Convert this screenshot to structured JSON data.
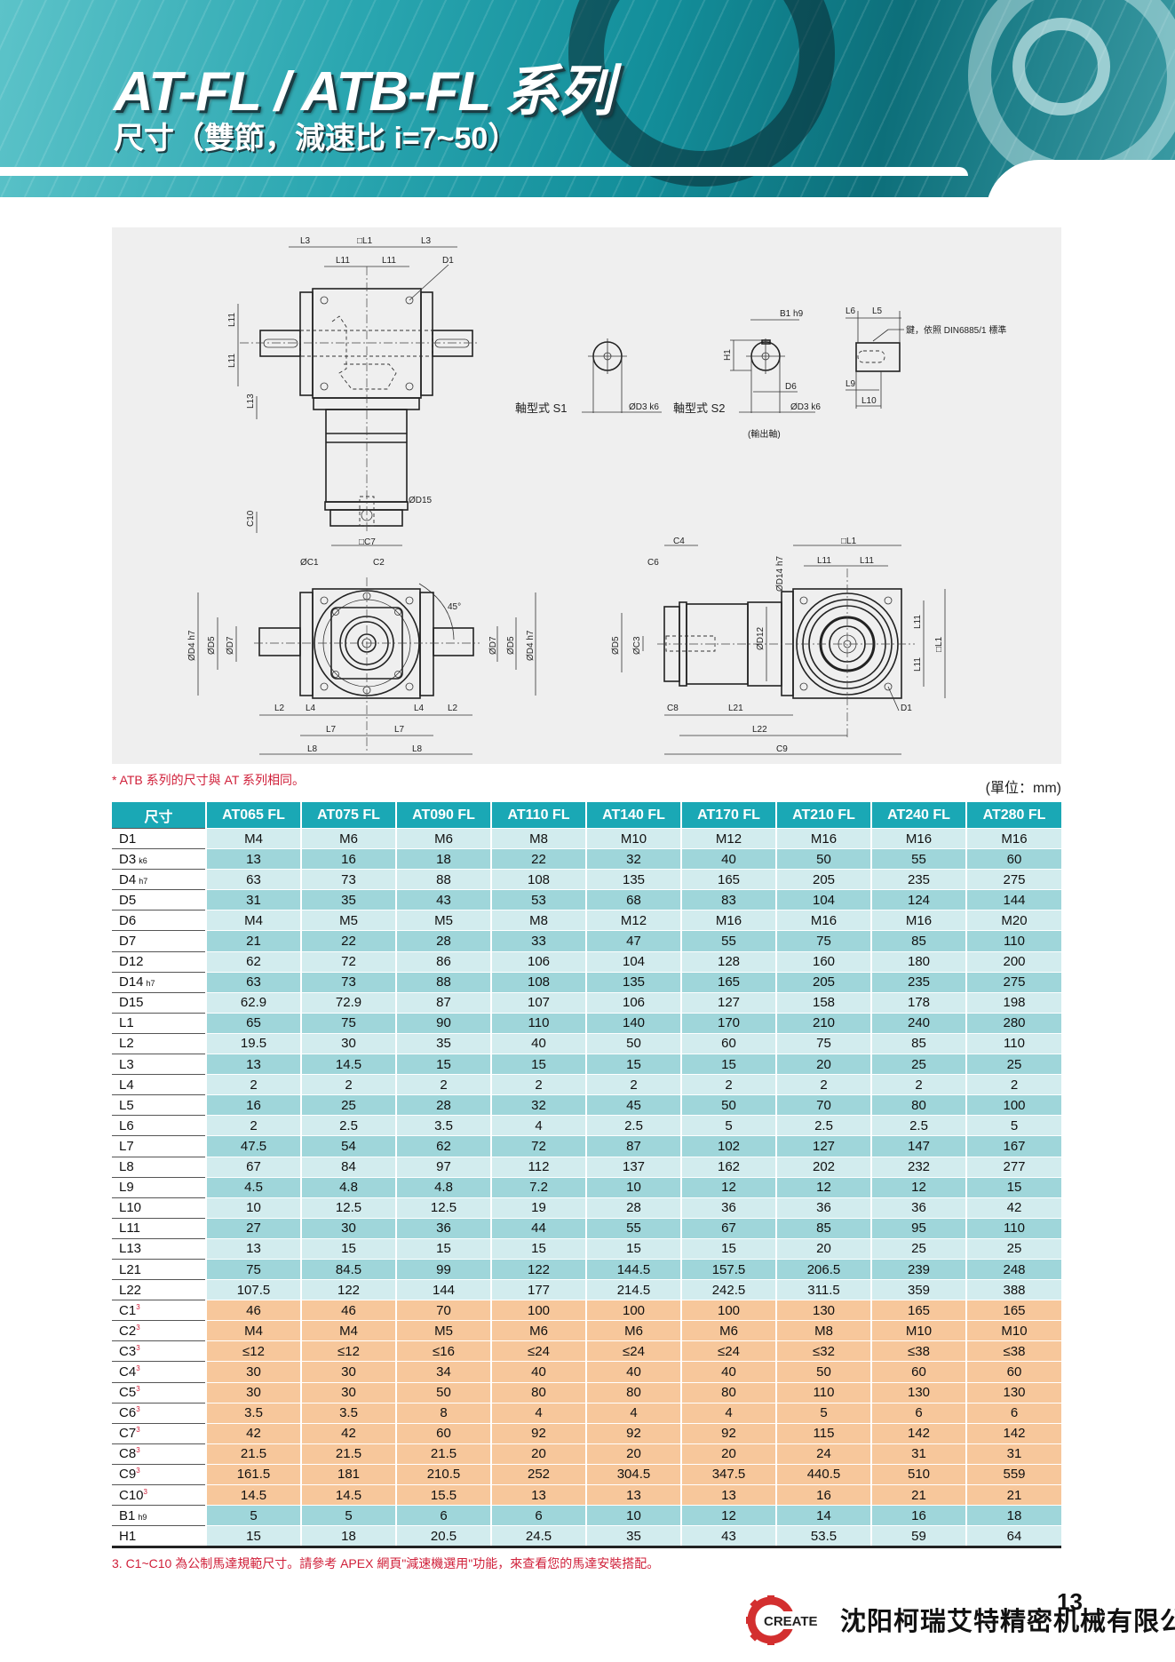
{
  "header": {
    "title": "AT-FL / ATB-FL 系列",
    "subtitle": "尺寸（雙節，減速比 i=7~50）"
  },
  "drawing": {
    "top_view": {
      "L3_left": "L3",
      "L1": "□L1",
      "L3_right": "L3",
      "L11_a": "L11",
      "L11_b": "L11",
      "D1": "D1",
      "L11_v1": "L11",
      "L11_v2": "L11",
      "L13": "L13",
      "D15": "ØD15",
      "C10": "C10"
    },
    "shaft_s1": {
      "caption": "軸型式 S1",
      "D3": "ØD3 k6"
    },
    "shaft_s2": {
      "caption": "軸型式 S2",
      "D3": "ØD3 k6",
      "B1": "B1 h9",
      "H1": "H1",
      "D6": "D6",
      "note": "(輸出軸)"
    },
    "key_view": {
      "L6": "L6",
      "L5": "L5",
      "L9": "L9",
      "L10": "L10",
      "key_note": "鍵，依照 DIN6885/1 標準"
    },
    "front_view": {
      "C7": "□C7",
      "C1": "ØC1",
      "C2": "C2",
      "angle": "45°",
      "D4_l": "ØD4 h7",
      "D5_l": "ØD5",
      "D7_l": "ØD7",
      "D7_r": "ØD7",
      "D5_r": "ØD5",
      "D4_r": "ØD4 h7",
      "L2_l": "L2",
      "L4_l": "L4",
      "L4_r": "L4",
      "L2_r": "L2",
      "L7_l": "L7",
      "L7_r": "L7",
      "L8_l": "L8",
      "L8_r": "L8"
    },
    "side_view": {
      "C4": "C4",
      "C6": "C6",
      "D14": "ØD14 h7",
      "L1_top": "□L1",
      "L11_a": "L11",
      "L11_b": "L11",
      "D5": "ØD5",
      "C3": "ØC3",
      "D12": "ØD12",
      "L11_v1": "L11",
      "L11_v2": "L11",
      "L1_side": "□L1",
      "D1": "D1",
      "C8": "C8",
      "L21": "L21",
      "L22": "L22",
      "C9": "C9"
    }
  },
  "notes": {
    "atb_note": "* ATB 系列的尺寸與 AT 系列相同。",
    "unit": "(單位：mm)",
    "footnote": "3. C1~C10 為公制馬達規範尺寸。請參考 APEX 網頁\"減速機選用\"功能，來查看您的馬達安裝搭配。"
  },
  "table": {
    "corner_header": "尺寸",
    "models": [
      "AT065 FL",
      "AT075 FL",
      "AT090 FL",
      "AT110 FL",
      "AT140 FL",
      "AT170 FL",
      "AT210 FL",
      "AT240 FL",
      "AT280 FL"
    ],
    "colors": {
      "header": "#1aa8b5",
      "light": "#d2ecee",
      "dark": "#9fd6da",
      "motor": "#f7c79b"
    },
    "rows": [
      {
        "label": "D1",
        "values": [
          "M4",
          "M6",
          "M6",
          "M8",
          "M10",
          "M12",
          "M16",
          "M16",
          "M16"
        ],
        "group": "light"
      },
      {
        "label": "D3",
        "tol": "k6",
        "values": [
          "13",
          "16",
          "18",
          "22",
          "32",
          "40",
          "50",
          "55",
          "60"
        ],
        "group": "dark"
      },
      {
        "label": "D4",
        "tol": "h7",
        "values": [
          "63",
          "73",
          "88",
          "108",
          "135",
          "165",
          "205",
          "235",
          "275"
        ],
        "group": "light"
      },
      {
        "label": "D5",
        "values": [
          "31",
          "35",
          "43",
          "53",
          "68",
          "83",
          "104",
          "124",
          "144"
        ],
        "group": "dark"
      },
      {
        "label": "D6",
        "values": [
          "M4",
          "M5",
          "M5",
          "M8",
          "M12",
          "M16",
          "M16",
          "M16",
          "M20"
        ],
        "group": "light"
      },
      {
        "label": "D7",
        "values": [
          "21",
          "22",
          "28",
          "33",
          "47",
          "55",
          "75",
          "85",
          "110"
        ],
        "group": "dark"
      },
      {
        "label": "D12",
        "values": [
          "62",
          "72",
          "86",
          "106",
          "104",
          "128",
          "160",
          "180",
          "200"
        ],
        "group": "light"
      },
      {
        "label": "D14",
        "tol": "h7",
        "values": [
          "63",
          "73",
          "88",
          "108",
          "135",
          "165",
          "205",
          "235",
          "275"
        ],
        "group": "dark"
      },
      {
        "label": "D15",
        "values": [
          "62.9",
          "72.9",
          "87",
          "107",
          "106",
          "127",
          "158",
          "178",
          "198"
        ],
        "group": "light"
      },
      {
        "label": "L1",
        "values": [
          "65",
          "75",
          "90",
          "110",
          "140",
          "170",
          "210",
          "240",
          "280"
        ],
        "group": "dark"
      },
      {
        "label": "L2",
        "values": [
          "19.5",
          "30",
          "35",
          "40",
          "50",
          "60",
          "75",
          "85",
          "110"
        ],
        "group": "light"
      },
      {
        "label": "L3",
        "values": [
          "13",
          "14.5",
          "15",
          "15",
          "15",
          "15",
          "20",
          "25",
          "25"
        ],
        "group": "dark"
      },
      {
        "label": "L4",
        "values": [
          "2",
          "2",
          "2",
          "2",
          "2",
          "2",
          "2",
          "2",
          "2"
        ],
        "group": "light"
      },
      {
        "label": "L5",
        "values": [
          "16",
          "25",
          "28",
          "32",
          "45",
          "50",
          "70",
          "80",
          "100"
        ],
        "group": "dark"
      },
      {
        "label": "L6",
        "values": [
          "2",
          "2.5",
          "3.5",
          "4",
          "2.5",
          "5",
          "2.5",
          "2.5",
          "5"
        ],
        "group": "light"
      },
      {
        "label": "L7",
        "values": [
          "47.5",
          "54",
          "62",
          "72",
          "87",
          "102",
          "127",
          "147",
          "167"
        ],
        "group": "dark"
      },
      {
        "label": "L8",
        "values": [
          "67",
          "84",
          "97",
          "112",
          "137",
          "162",
          "202",
          "232",
          "277"
        ],
        "group": "light"
      },
      {
        "label": "L9",
        "values": [
          "4.5",
          "4.8",
          "4.8",
          "7.2",
          "10",
          "12",
          "12",
          "12",
          "15"
        ],
        "group": "dark"
      },
      {
        "label": "L10",
        "values": [
          "10",
          "12.5",
          "12.5",
          "19",
          "28",
          "36",
          "36",
          "36",
          "42"
        ],
        "group": "light"
      },
      {
        "label": "L11",
        "values": [
          "27",
          "30",
          "36",
          "44",
          "55",
          "67",
          "85",
          "95",
          "110"
        ],
        "group": "dark"
      },
      {
        "label": "L13",
        "values": [
          "13",
          "15",
          "15",
          "15",
          "15",
          "15",
          "20",
          "25",
          "25"
        ],
        "group": "light"
      },
      {
        "label": "L21",
        "values": [
          "75",
          "84.5",
          "99",
          "122",
          "144.5",
          "157.5",
          "206.5",
          "239",
          "248"
        ],
        "group": "dark"
      },
      {
        "label": "L22",
        "values": [
          "107.5",
          "122",
          "144",
          "177",
          "214.5",
          "242.5",
          "311.5",
          "359",
          "388"
        ],
        "group": "light"
      },
      {
        "label": "C1",
        "sup": "3",
        "values": [
          "46",
          "46",
          "70",
          "100",
          "100",
          "100",
          "130",
          "165",
          "165"
        ],
        "group": "orange"
      },
      {
        "label": "C2",
        "sup": "3",
        "values": [
          "M4",
          "M4",
          "M5",
          "M6",
          "M6",
          "M6",
          "M8",
          "M10",
          "M10"
        ],
        "group": "orange"
      },
      {
        "label": "C3",
        "sup": "3",
        "values": [
          "≤12",
          "≤12",
          "≤16",
          "≤24",
          "≤24",
          "≤24",
          "≤32",
          "≤38",
          "≤38"
        ],
        "group": "orange"
      },
      {
        "label": "C4",
        "sup": "3",
        "values": [
          "30",
          "30",
          "34",
          "40",
          "40",
          "40",
          "50",
          "60",
          "60"
        ],
        "group": "orange"
      },
      {
        "label": "C5",
        "sup": "3",
        "values": [
          "30",
          "30",
          "50",
          "80",
          "80",
          "80",
          "110",
          "130",
          "130"
        ],
        "group": "orange"
      },
      {
        "label": "C6",
        "sup": "3",
        "values": [
          "3.5",
          "3.5",
          "8",
          "4",
          "4",
          "4",
          "5",
          "6",
          "6"
        ],
        "group": "orange"
      },
      {
        "label": "C7",
        "sup": "3",
        "values": [
          "42",
          "42",
          "60",
          "92",
          "92",
          "92",
          "115",
          "142",
          "142"
        ],
        "group": "orange"
      },
      {
        "label": "C8",
        "sup": "3",
        "values": [
          "21.5",
          "21.5",
          "21.5",
          "20",
          "20",
          "20",
          "24",
          "31",
          "31"
        ],
        "group": "orange"
      },
      {
        "label": "C9",
        "sup": "3",
        "values": [
          "161.5",
          "181",
          "210.5",
          "252",
          "304.5",
          "347.5",
          "440.5",
          "510",
          "559"
        ],
        "group": "orange"
      },
      {
        "label": "C10",
        "sup": "3",
        "values": [
          "14.5",
          "14.5",
          "15.5",
          "13",
          "13",
          "13",
          "16",
          "21",
          "21"
        ],
        "group": "orange"
      },
      {
        "label": "B1",
        "tol": "h9",
        "values": [
          "5",
          "5",
          "6",
          "6",
          "10",
          "12",
          "14",
          "16",
          "18"
        ],
        "group": "dark"
      },
      {
        "label": "H1",
        "values": [
          "15",
          "18",
          "20.5",
          "24.5",
          "35",
          "43",
          "53.5",
          "59",
          "64"
        ],
        "group": "light"
      }
    ]
  },
  "footer": {
    "logo_text": "CREATE",
    "logo_color": "#d32f2f",
    "company": "沈阳柯瑞艾特精密机械有限公司",
    "page_number": "13"
  }
}
